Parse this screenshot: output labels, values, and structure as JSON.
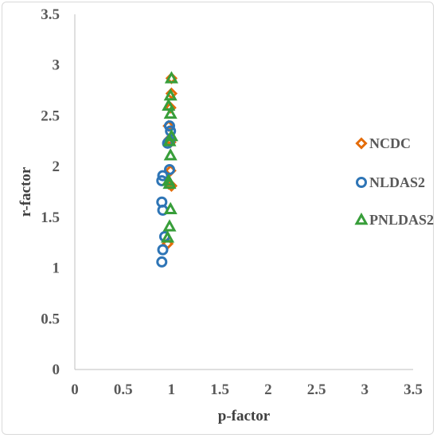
{
  "chart_data": {
    "type": "scatter",
    "title": "",
    "xlabel": "p-factor",
    "ylabel": "r-factor",
    "xlim": [
      0,
      3.5
    ],
    "ylim": [
      0,
      3.5
    ],
    "x_ticks": [
      "0",
      "0.5",
      "1",
      "1.5",
      "2",
      "2.5",
      "3",
      "3.5"
    ],
    "y_ticks": [
      "0",
      "0.5",
      "1",
      "1.5",
      "2",
      "2.5",
      "3",
      "3.5"
    ],
    "grid": false,
    "legend_position": "right",
    "series": [
      {
        "name": "NCDC",
        "marker": "diamond",
        "color": "#E46C0A",
        "points": [
          {
            "x": 1.0,
            "y": 2.87
          },
          {
            "x": 1.0,
            "y": 2.72
          },
          {
            "x": 0.99,
            "y": 2.58
          },
          {
            "x": 0.97,
            "y": 2.4
          },
          {
            "x": 0.98,
            "y": 2.27
          },
          {
            "x": 0.99,
            "y": 2.24
          },
          {
            "x": 0.99,
            "y": 1.96
          },
          {
            "x": 1.0,
            "y": 1.81
          },
          {
            "x": 0.97,
            "y": 1.83
          },
          {
            "x": 0.96,
            "y": 1.24
          }
        ]
      },
      {
        "name": "NLDAS2",
        "marker": "circle",
        "color": "#2E75B6",
        "points": [
          {
            "x": 0.98,
            "y": 2.4
          },
          {
            "x": 0.99,
            "y": 2.35
          },
          {
            "x": 0.98,
            "y": 2.25
          },
          {
            "x": 0.96,
            "y": 2.23
          },
          {
            "x": 0.98,
            "y": 1.97
          },
          {
            "x": 0.91,
            "y": 1.91
          },
          {
            "x": 0.9,
            "y": 1.86
          },
          {
            "x": 0.9,
            "y": 1.65
          },
          {
            "x": 0.91,
            "y": 1.57
          },
          {
            "x": 0.93,
            "y": 1.31
          },
          {
            "x": 0.91,
            "y": 1.18
          },
          {
            "x": 0.9,
            "y": 1.06
          }
        ]
      },
      {
        "name": "PNLDAS2",
        "marker": "triangle",
        "color": "#389E3A",
        "points": [
          {
            "x": 1.0,
            "y": 2.87
          },
          {
            "x": 0.99,
            "y": 2.7
          },
          {
            "x": 0.97,
            "y": 2.6
          },
          {
            "x": 0.99,
            "y": 2.52
          },
          {
            "x": 1.0,
            "y": 2.3
          },
          {
            "x": 0.98,
            "y": 2.25
          },
          {
            "x": 0.99,
            "y": 2.11
          },
          {
            "x": 0.97,
            "y": 1.86
          },
          {
            "x": 0.98,
            "y": 1.83
          },
          {
            "x": 0.99,
            "y": 1.58
          },
          {
            "x": 0.98,
            "y": 1.41
          },
          {
            "x": 0.96,
            "y": 1.3
          }
        ]
      }
    ]
  }
}
